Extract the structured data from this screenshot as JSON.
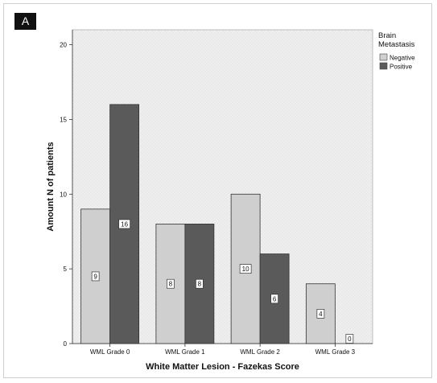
{
  "chart_data": {
    "type": "bar",
    "panel_label": "A",
    "title": "",
    "xlabel": "White Matter Lesion - Fazekas Score",
    "ylabel": "Amount N of patients",
    "categories": [
      "WML Grade 0",
      "WML Grade 1",
      "WML Grade 2",
      "WML Grade 3"
    ],
    "ylim": [
      0,
      21
    ],
    "yticks": [
      0,
      5,
      10,
      15,
      20
    ],
    "grid": false,
    "legend": {
      "title_line1": "Brain",
      "title_line2": "Metastasis",
      "placement": "right"
    },
    "series": [
      {
        "name": "Negative",
        "values": [
          9,
          8,
          10,
          4
        ],
        "color": "#cfcfcf"
      },
      {
        "name": "Positive",
        "values": [
          16,
          8,
          6,
          0
        ],
        "color": "#5a5a5a"
      }
    ],
    "background_color": "#e9e9e9"
  }
}
